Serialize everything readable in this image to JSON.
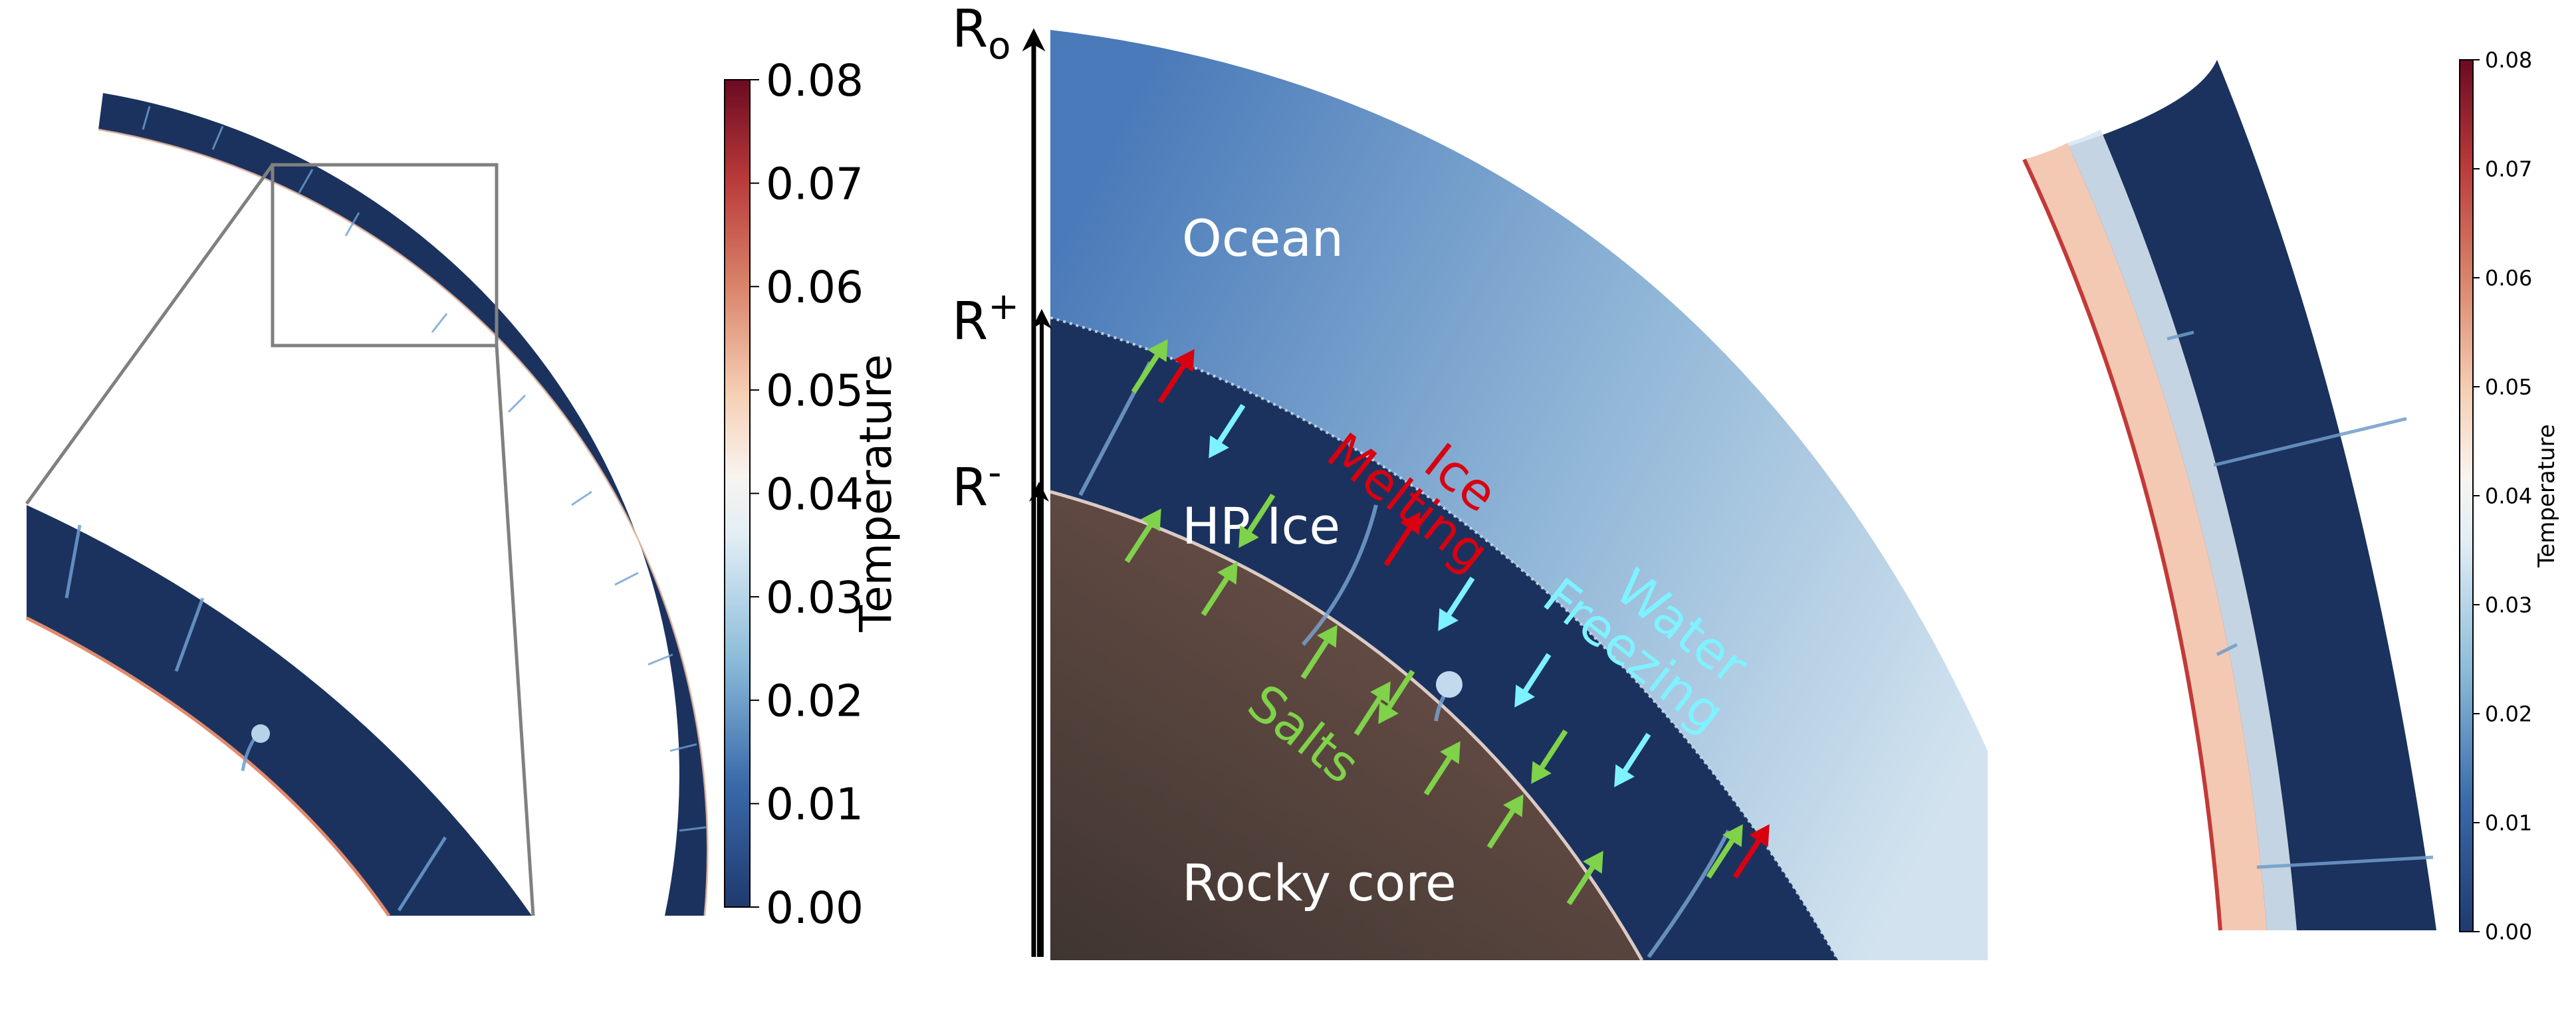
{
  "colors": {
    "ice": "#1b325e",
    "ice_light": "#2b4d86",
    "ocean_dark": "#4f7fbd",
    "ocean_light": "#c4d9ea",
    "core_dark": "#433833",
    "core_light": "#6d5048",
    "hot_boundary": "#f3c7ac",
    "melting": "#d90010",
    "freezing": "#7ff2ff",
    "salts": "#7fd24a",
    "label_white": "#ffffff",
    "zoom_box": "#808080"
  },
  "left_panel": {
    "colorbar": {
      "label": "Temperature",
      "ticks": [
        "0.00",
        "0.01",
        "0.02",
        "0.03",
        "0.04",
        "0.05",
        "0.06",
        "0.07",
        "0.08"
      ],
      "min": 0.0,
      "max": 0.08
    }
  },
  "middle_panel": {
    "radius_labels": {
      "outer": "R",
      "outer_sub": "o",
      "plus": "R",
      "plus_sup": "+",
      "minus": "R",
      "minus_sup": "-"
    },
    "region_labels": {
      "ocean": "Ocean",
      "hp_ice": "HP Ice",
      "core": "Rocky core"
    },
    "process_labels": {
      "ice_melting_1": "Ice",
      "ice_melting_2": "Melting",
      "water_freezing_1": "Water",
      "water_freezing_2": "Freezing",
      "salts": "Salts"
    }
  },
  "right_panel": {
    "colorbar": {
      "label": "Temperature",
      "ticks": [
        "0.00",
        "0.01",
        "0.02",
        "0.03",
        "0.04",
        "0.05",
        "0.06",
        "0.07",
        "0.08"
      ],
      "min": 0.0,
      "max": 0.08
    }
  }
}
